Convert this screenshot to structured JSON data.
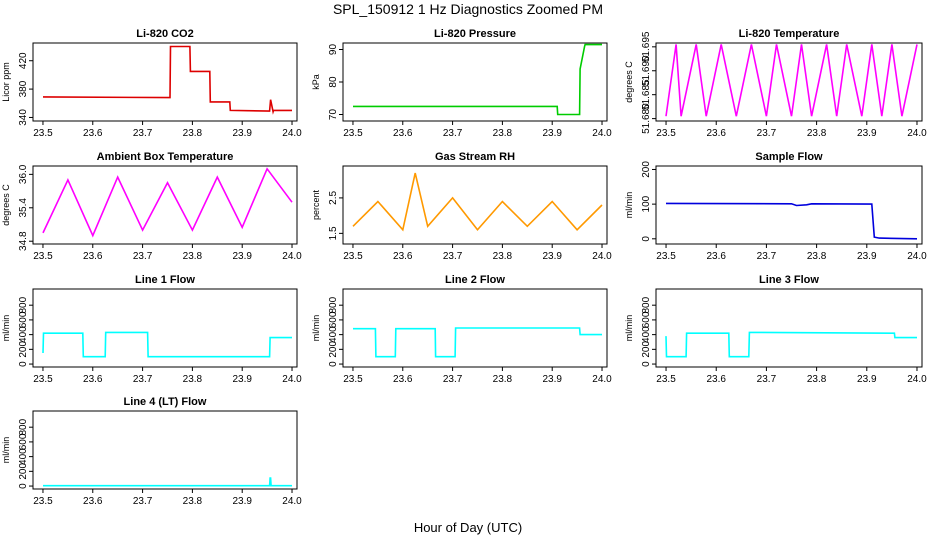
{
  "figure": {
    "title": "SPL_150912  1 Hz Diagnostics Zoomed PM",
    "xlabel": "Hour of Day (UTC)"
  },
  "chart_data": [
    {
      "type": "line",
      "title": "Li-820 CO2",
      "ylabel": "Licor ppm",
      "color": "#dd0000",
      "xlim": [
        23.48,
        24.01
      ],
      "ylim": [
        335,
        445
      ],
      "xticks": [
        "23.5",
        "23.6",
        "23.7",
        "23.8",
        "23.9",
        "24.0"
      ],
      "yticks": [
        "340",
        "380",
        "420"
      ],
      "series": [
        {
          "x": [
            23.5,
            23.755,
            23.756,
            23.795,
            23.796,
            23.835,
            23.836,
            23.875,
            23.876,
            23.955,
            23.957,
            23.962,
            23.963,
            24.0
          ],
          "y": [
            369,
            368,
            440,
            440,
            405,
            405,
            362,
            362,
            350,
            349,
            365,
            348,
            350,
            350
          ]
        }
      ]
    },
    {
      "type": "line",
      "title": "Li-820 Pressure",
      "ylabel": "kPa",
      "color": "#00cc00",
      "xlim": [
        23.48,
        24.01
      ],
      "ylim": [
        68,
        92
      ],
      "xticks": [
        "23.5",
        "23.6",
        "23.7",
        "23.8",
        "23.9",
        "24.0"
      ],
      "yticks": [
        "70",
        "80",
        "90"
      ],
      "series": [
        {
          "x": [
            23.5,
            23.91,
            23.911,
            23.955,
            23.956,
            23.965,
            23.966,
            24.0
          ],
          "y": [
            72.5,
            72.5,
            70,
            70,
            84,
            91,
            91.5,
            91.5
          ]
        }
      ]
    },
    {
      "type": "line",
      "title": "Li-820 Temperature",
      "ylabel": "degrees C",
      "color": "#ff00ff",
      "xlim": [
        23.48,
        24.01
      ],
      "ylim": [
        51.6795,
        51.6958
      ],
      "xticks": [
        "23.5",
        "23.6",
        "23.7",
        "23.8",
        "23.9",
        "24.0"
      ],
      "yticks": [
        "51.680",
        "51.685",
        "51.690",
        "51.695"
      ],
      "series": [
        {
          "x": [
            23.5,
            23.52,
            23.53,
            23.56,
            23.58,
            23.61,
            23.64,
            23.67,
            23.7,
            23.72,
            23.75,
            23.77,
            23.79,
            23.82,
            23.84,
            23.86,
            23.89,
            23.91,
            23.93,
            23.95,
            23.97,
            24.0
          ],
          "y": [
            51.6805,
            51.6955,
            51.6805,
            51.6955,
            51.6805,
            51.6955,
            51.6805,
            51.6955,
            51.6805,
            51.6955,
            51.6805,
            51.6955,
            51.6805,
            51.6955,
            51.6805,
            51.6955,
            51.6805,
            51.6955,
            51.6805,
            51.6955,
            51.6805,
            51.6955
          ]
        }
      ]
    },
    {
      "type": "line",
      "title": "Ambient Box Temperature",
      "ylabel": "degrees C",
      "color": "#ff00ff",
      "xlim": [
        23.48,
        24.01
      ],
      "ylim": [
        34.75,
        36.15
      ],
      "xticks": [
        "23.5",
        "23.6",
        "23.7",
        "23.8",
        "23.9",
        "24.0"
      ],
      "yticks": [
        "34.8",
        "35.4",
        "36.0"
      ],
      "series": [
        {
          "x": [
            23.5,
            23.55,
            23.6,
            23.65,
            23.7,
            23.75,
            23.8,
            23.85,
            23.9,
            23.95,
            24.0
          ],
          "y": [
            34.95,
            35.9,
            34.9,
            35.95,
            35.0,
            35.85,
            35.0,
            35.95,
            35.05,
            36.1,
            35.5
          ]
        }
      ]
    },
    {
      "type": "line",
      "title": "Gas Stream RH",
      "ylabel": "percent",
      "color": "#ff9900",
      "xlim": [
        23.48,
        24.01
      ],
      "ylim": [
        1.2,
        3.4
      ],
      "xticks": [
        "23.5",
        "23.6",
        "23.7",
        "23.8",
        "23.9",
        "24.0"
      ],
      "yticks": [
        "1.5",
        "2.5"
      ],
      "series": [
        {
          "x": [
            23.5,
            23.55,
            23.6,
            23.625,
            23.65,
            23.7,
            23.75,
            23.8,
            23.85,
            23.9,
            23.95,
            24.0
          ],
          "y": [
            1.7,
            2.4,
            1.6,
            3.2,
            1.7,
            2.5,
            1.6,
            2.4,
            1.7,
            2.4,
            1.6,
            2.3
          ]
        }
      ]
    },
    {
      "type": "line",
      "title": "Sample Flow",
      "ylabel": "ml/min",
      "color": "#0000dd",
      "xlim": [
        23.48,
        24.01
      ],
      "ylim": [
        -15,
        210
      ],
      "xticks": [
        "23.5",
        "23.6",
        "23.7",
        "23.8",
        "23.9",
        "24.0"
      ],
      "yticks": [
        "0",
        "100",
        "200"
      ],
      "series": [
        {
          "x": [
            23.5,
            23.75,
            23.76,
            23.78,
            23.79,
            23.91,
            23.915,
            23.925,
            24.0
          ],
          "y": [
            102,
            101,
            96,
            98,
            101,
            100,
            5,
            2,
            0
          ]
        }
      ]
    },
    {
      "type": "line",
      "title": "Line 1 Flow",
      "ylabel": "ml/min",
      "color": "#00ffff",
      "xlim": [
        23.48,
        24.01
      ],
      "ylim": [
        -40,
        1020
      ],
      "xticks": [
        "23.5",
        "23.6",
        "23.7",
        "23.8",
        "23.9",
        "24.0"
      ],
      "yticks": [
        "0",
        "200",
        "400",
        "600",
        "800"
      ],
      "series": [
        {
          "x": [
            23.5,
            23.501,
            23.58,
            23.581,
            23.625,
            23.626,
            23.71,
            23.711,
            23.955,
            23.956,
            24.0
          ],
          "y": [
            150,
            420,
            420,
            100,
            100,
            430,
            430,
            100,
            100,
            360,
            360
          ]
        }
      ]
    },
    {
      "type": "line",
      "title": "Line 2 Flow",
      "ylabel": "ml/min",
      "color": "#00ffff",
      "xlim": [
        23.48,
        24.01
      ],
      "ylim": [
        -40,
        1020
      ],
      "xticks": [
        "23.5",
        "23.6",
        "23.7",
        "23.8",
        "23.9",
        "24.0"
      ],
      "yticks": [
        "0",
        "200",
        "400",
        "600",
        "800"
      ],
      "series": [
        {
          "x": [
            23.5,
            23.545,
            23.546,
            23.585,
            23.586,
            23.665,
            23.666,
            23.705,
            23.706,
            23.955,
            23.956,
            24.0
          ],
          "y": [
            480,
            480,
            100,
            100,
            480,
            480,
            100,
            100,
            490,
            490,
            400,
            400
          ]
        }
      ]
    },
    {
      "type": "line",
      "title": "Line 3 Flow",
      "ylabel": "ml/min",
      "color": "#00ffff",
      "xlim": [
        23.48,
        24.01
      ],
      "ylim": [
        -40,
        1020
      ],
      "xticks": [
        "23.5",
        "23.6",
        "23.7",
        "23.8",
        "23.9",
        "24.0"
      ],
      "yticks": [
        "0",
        "200",
        "400",
        "600",
        "800"
      ],
      "series": [
        {
          "x": [
            23.5,
            23.501,
            23.503,
            23.54,
            23.541,
            23.625,
            23.626,
            23.665,
            23.666,
            23.955,
            23.956,
            24.0
          ],
          "y": [
            380,
            100,
            100,
            100,
            420,
            420,
            100,
            100,
            430,
            420,
            360,
            360
          ]
        }
      ]
    },
    {
      "type": "line",
      "title": "Line 4 (LT) Flow",
      "ylabel": "ml/min",
      "color": "#00ffff",
      "xlim": [
        23.48,
        24.01
      ],
      "ylim": [
        -40,
        1020
      ],
      "xticks": [
        "23.5",
        "23.6",
        "23.7",
        "23.8",
        "23.9",
        "24.0"
      ],
      "yticks": [
        "0",
        "200",
        "400",
        "600",
        "800"
      ],
      "series": [
        {
          "x": [
            23.5,
            23.955,
            23.956,
            23.957,
            23.958,
            24.0
          ],
          "y": [
            5,
            5,
            110,
            110,
            5,
            5
          ]
        }
      ]
    }
  ]
}
